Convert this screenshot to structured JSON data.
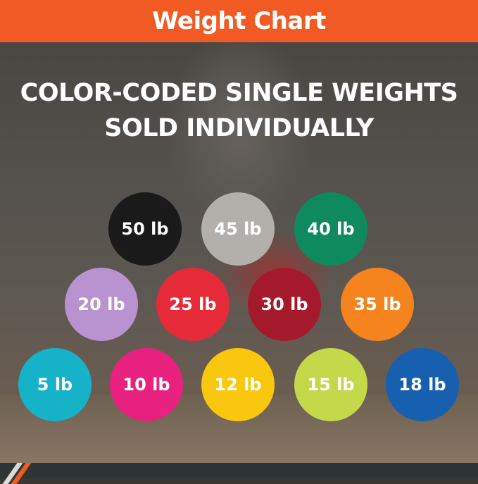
{
  "header": {
    "title": "Weight Chart"
  },
  "headline": {
    "line1": "COLOR-CODED SINGLE WEIGHTS",
    "line2": "SOLD INDIVIDUALLY"
  },
  "colors": {
    "header": "#f15a22",
    "footer": "#2e3436"
  },
  "weights": [
    {
      "label": "50 lb",
      "color": "#1b1a1a"
    },
    {
      "label": "45 lb",
      "color": "#b3b0ac"
    },
    {
      "label": "40 lb",
      "color": "#0e8a5e"
    },
    {
      "label": "20 lb",
      "color": "#b893cf"
    },
    {
      "label": "25 lb",
      "color": "#e62a3a"
    },
    {
      "label": "30 lb",
      "color": "#a5192d"
    },
    {
      "label": "35 lb",
      "color": "#f5841f"
    },
    {
      "label": "5 lb",
      "color": "#16b2c8"
    },
    {
      "label": "10 lb",
      "color": "#e8217f"
    },
    {
      "label": "12 lb",
      "color": "#f8c70e"
    },
    {
      "label": "15 lb",
      "color": "#c4d84a"
    },
    {
      "label": "18 lb",
      "color": "#1760b0"
    }
  ]
}
